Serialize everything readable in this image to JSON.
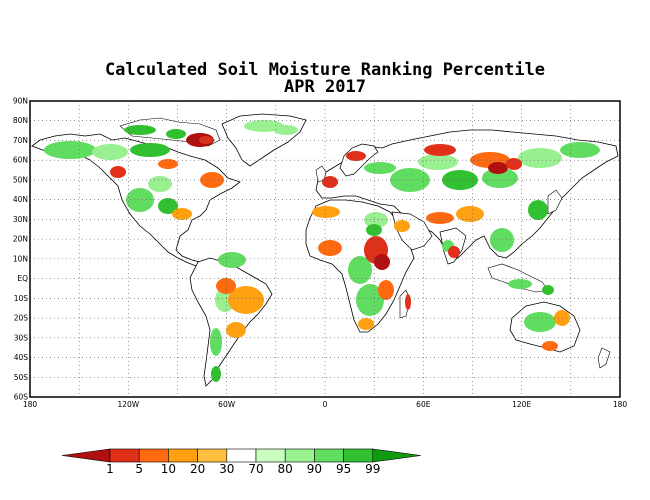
{
  "title": "Calculated Soil Moisture Ranking Percentile",
  "subtitle": "APR 2017",
  "lat_labels": [
    "90N",
    "80N",
    "70N",
    "60N",
    "50N",
    "40N",
    "30N",
    "20N",
    "10N",
    "EQ",
    "10S",
    "20S",
    "30S",
    "40S",
    "50S",
    "60S"
  ],
  "lon_labels": [
    "180",
    "120W",
    "60W",
    "0",
    "60E",
    "120E",
    "180"
  ],
  "legend": {
    "colors": [
      "#b01010",
      "#e0301a",
      "#ff6a10",
      "#ffa010",
      "#ffc040",
      "#ffffff",
      "#c8ffc0",
      "#98f090",
      "#60dc60",
      "#30c030",
      "#109a10"
    ],
    "labels": [
      "1",
      "5",
      "10",
      "20",
      "30",
      "70",
      "80",
      "90",
      "95",
      "99"
    ]
  },
  "chart_data": {
    "type": "map",
    "title": "Calculated Soil Moisture Ranking Percentile",
    "subtitle": "APR 2017",
    "lat_range": [
      -60,
      90
    ],
    "lon_range": [
      -180,
      180
    ],
    "grid": true,
    "legend_placement": "bottom",
    "percentile_bins": [
      1,
      5,
      10,
      20,
      30,
      70,
      80,
      90,
      95,
      99
    ]
  }
}
